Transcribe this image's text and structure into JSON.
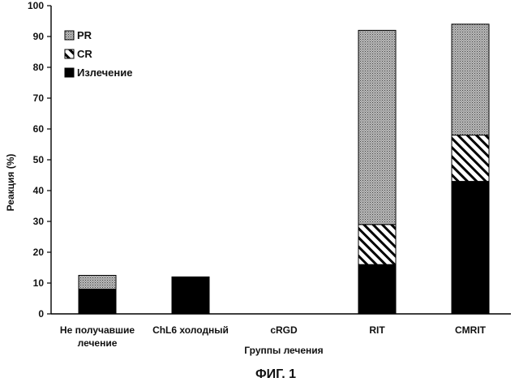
{
  "chart_data": {
    "type": "bar",
    "stacked": true,
    "title": "",
    "figure_caption": "ФИГ. 1",
    "xlabel": "Группы лечения",
    "ylabel": "Реакция (%)",
    "ylim": [
      0,
      100
    ],
    "yticks": [
      0,
      10,
      20,
      30,
      40,
      50,
      60,
      70,
      80,
      90,
      100
    ],
    "grid": false,
    "legend_position": "top-left",
    "categories": [
      [
        "Не получавшие",
        "лечение"
      ],
      [
        "ChL6 холодный"
      ],
      [
        "cRGD"
      ],
      [
        "RIT"
      ],
      [
        "CMRIT"
      ]
    ],
    "series": [
      {
        "name": "Излечение",
        "values": [
          8,
          12,
          0,
          16,
          43
        ],
        "pattern": "solid-black"
      },
      {
        "name": "CR",
        "values": [
          0,
          0,
          0,
          13,
          15
        ],
        "pattern": "diagonal-hatch"
      },
      {
        "name": "PR",
        "values": [
          4.5,
          0,
          0,
          63,
          36
        ],
        "pattern": "stipple-gray"
      }
    ],
    "legend_order": [
      "PR",
      "CR",
      "Излечение"
    ]
  }
}
